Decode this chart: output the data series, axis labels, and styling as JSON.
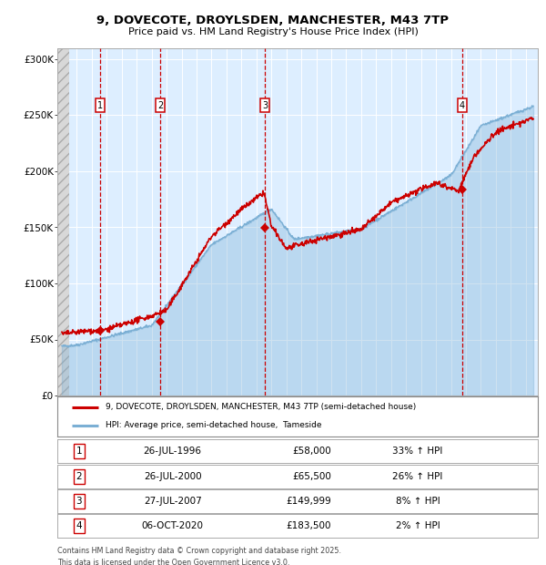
{
  "title_line1": "9, DOVECOTE, DROYLSDEN, MANCHESTER, M43 7TP",
  "title_line2": "Price paid vs. HM Land Registry's House Price Index (HPI)",
  "ylim": [
    0,
    310000
  ],
  "yticks": [
    0,
    50000,
    100000,
    150000,
    200000,
    250000,
    300000
  ],
  "ytick_labels": [
    "£0",
    "£50K",
    "£100K",
    "£150K",
    "£200K",
    "£250K",
    "£300K"
  ],
  "hpi_color": "#7bafd4",
  "price_color": "#cc0000",
  "bg_color": "#ddeeff",
  "grid_color": "#ffffff",
  "vline_color": "#cc0000",
  "xlim_start": 1993.7,
  "xlim_end": 2025.8,
  "purchases": [
    {
      "label": "1",
      "date_num": 1996.57,
      "price": 58000
    },
    {
      "label": "2",
      "date_num": 2000.57,
      "price": 65500
    },
    {
      "label": "3",
      "date_num": 2007.57,
      "price": 149999
    },
    {
      "label": "4",
      "date_num": 2020.76,
      "price": 183500
    }
  ],
  "purchase_dates": [
    "26-JUL-1996",
    "26-JUL-2000",
    "27-JUL-2007",
    "06-OCT-2020"
  ],
  "purchase_prices": [
    "£58,000",
    "£65,500",
    "£149,999",
    "£183,500"
  ],
  "purchase_pcts": [
    "33% ↑ HPI",
    "26% ↑ HPI",
    "8% ↑ HPI",
    "2% ↑ HPI"
  ],
  "legend_label1": "9, DOVECOTE, DROYLSDEN, MANCHESTER, M43 7TP (semi-detached house)",
  "legend_label2": "HPI: Average price, semi-detached house,  Tameside",
  "footer_line1": "Contains HM Land Registry data © Crown copyright and database right 2025.",
  "footer_line2": "This data is licensed under the Open Government Licence v3.0."
}
